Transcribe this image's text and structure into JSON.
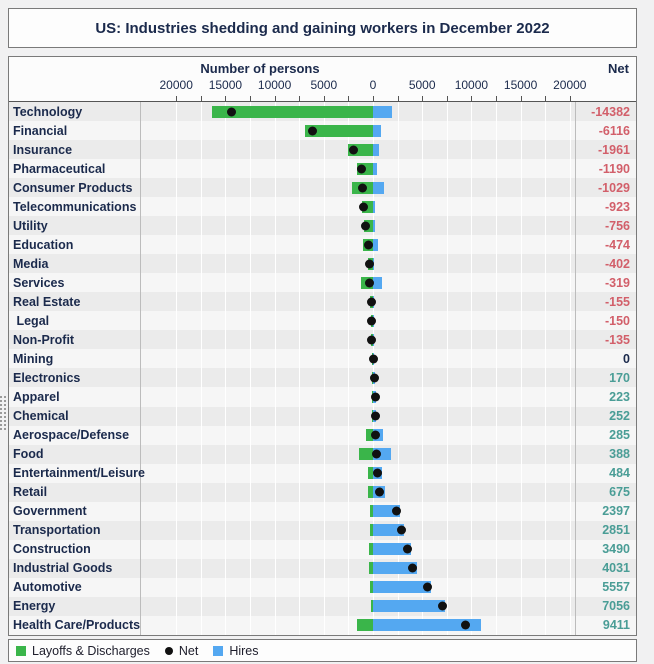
{
  "title": "US: Industries shedding and gaining workers in December 2022",
  "axis": {
    "title": "Number of persons",
    "net_header": "Net"
  },
  "legend": {
    "position": "bottom",
    "items": [
      {
        "label": "Layoffs & Discharges",
        "shape": "square",
        "color": "#3ab54a"
      },
      {
        "label": "Net",
        "shape": "dot",
        "color": "#111111"
      },
      {
        "label": "Hires",
        "shape": "square",
        "color": "#54a8f1"
      }
    ]
  },
  "colors": {
    "layoffs_bar": "#3ab54a",
    "hires_bar": "#54a8f1",
    "net_dot": "#111111",
    "net_negative_text": "#d25f6a",
    "net_positive_text": "#4a9d96",
    "net_zero_text": "#1b2a4c",
    "label_text": "#1b2a4c",
    "row_stripe_dark": "#ebebeb",
    "row_stripe_light": "#f6f6f6"
  },
  "chart_data": {
    "type": "bar",
    "orientation": "horizontal-diverging",
    "title": "US: Industries shedding and gaining workers in December 2022",
    "xlabel": "Number of persons",
    "xlim": [
      -23500,
      20500
    ],
    "x_major_ticks": [
      -20000,
      -15000,
      -10000,
      -5000,
      0,
      5000,
      10000,
      15000,
      20000
    ],
    "x_tick_labels": [
      "20000",
      "15000",
      "10000",
      "5000",
      "0",
      "5000",
      "10000",
      "15000",
      "20000"
    ],
    "x_minor_tick_interval": 2500,
    "grid": true,
    "legend_position": "bottom",
    "categories": [
      "Technology",
      "Financial",
      "Insurance",
      "Pharmaceutical",
      "Consumer Products",
      "Telecommunications",
      "Utility",
      "Education",
      "Media",
      "Services",
      "Real Estate",
      " Legal",
      "Non-Profit",
      "Mining",
      "Electronics",
      "Apparel",
      "Chemical",
      "Aerospace/Defense",
      "Food",
      "Entertainment/Leisure",
      "Retail",
      "Government",
      "Transportation",
      "Construction",
      "Industrial Goods",
      "Automotive",
      "Energy",
      "Health Care/Products"
    ],
    "series": [
      {
        "name": "Layoffs & Discharges",
        "direction": "left",
        "color": "#3ab54a",
        "values": [
          16332,
          6936,
          2561,
          1610,
          2149,
          1163,
          931,
          994,
          552,
          1209,
          260,
          210,
          230,
          100,
          80,
          87,
          58,
          755,
          1452,
          476,
          505,
          353,
          299,
          410,
          399,
          303,
          254,
          1599
        ]
      },
      {
        "name": "Hires",
        "direction": "right",
        "color": "#54a8f1",
        "values": [
          1950,
          820,
          600,
          420,
          1120,
          240,
          175,
          520,
          150,
          890,
          105,
          60,
          95,
          100,
          250,
          310,
          310,
          1040,
          1840,
          960,
          1180,
          2750,
          3150,
          3900,
          4430,
          5860,
          7310,
          11010
        ]
      },
      {
        "name": "Net",
        "type": "point",
        "color": "#111111",
        "values": [
          -14382,
          -6116,
          -1961,
          -1190,
          -1029,
          -923,
          -756,
          -474,
          -402,
          -319,
          -155,
          -150,
          -135,
          0,
          170,
          223,
          252,
          285,
          388,
          484,
          675,
          2397,
          2851,
          3490,
          4031,
          5557,
          7056,
          9411
        ]
      }
    ]
  }
}
